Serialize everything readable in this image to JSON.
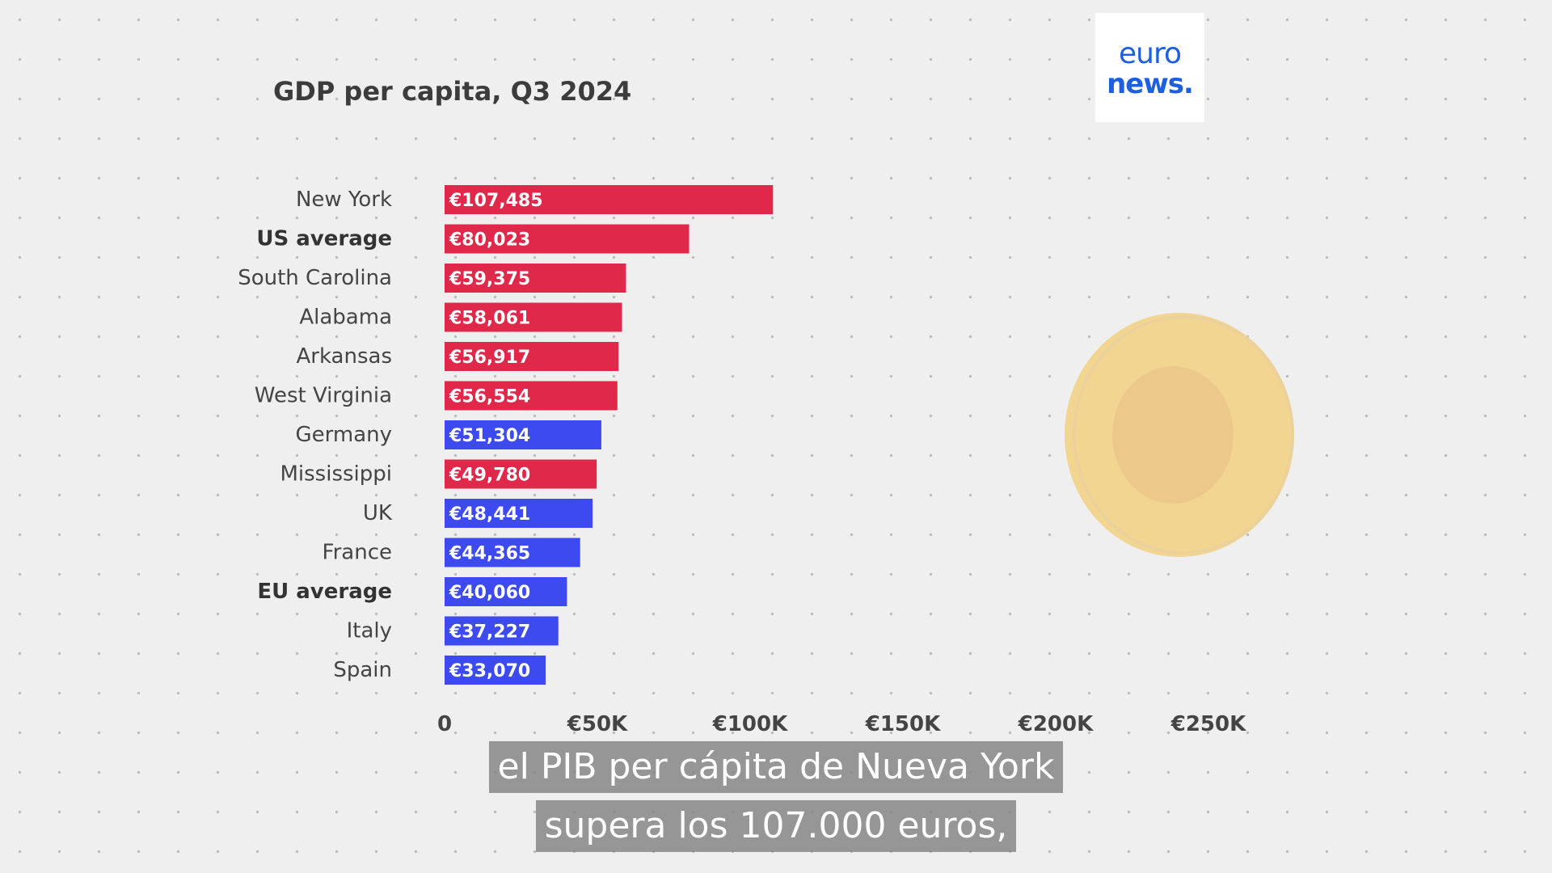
{
  "chart_data": {
    "type": "bar",
    "orientation": "horizontal",
    "title": "GDP per capita, Q3 2024",
    "categories": [
      "New York",
      "US average",
      "South Carolina",
      "Alabama",
      "Arkansas",
      "West Virginia",
      "Germany",
      "Mississippi",
      "UK",
      "France",
      "EU average",
      "Italy",
      "Spain"
    ],
    "values": [
      107485,
      80023,
      59375,
      58061,
      56917,
      56554,
      51304,
      49780,
      48441,
      44365,
      40060,
      37227,
      33070
    ],
    "value_labels": [
      "€107,485",
      "€80,023",
      "€59,375",
      "€58,061",
      "€56,917",
      "€56,554",
      "€51,304",
      "€49,780",
      "€48,441",
      "€44,365",
      "€40,060",
      "€37,227",
      "€33,070"
    ],
    "bold_categories": [
      "US average",
      "EU average"
    ],
    "bar_colors": [
      "#e0284a",
      "#e0284a",
      "#e0284a",
      "#e0284a",
      "#e0284a",
      "#e0284a",
      "#3d4af0",
      "#e0284a",
      "#3d4af0",
      "#3d4af0",
      "#3d4af0",
      "#3d4af0",
      "#3d4af0"
    ],
    "xlim": [
      0,
      250000
    ],
    "x_ticks": [
      0,
      50000,
      100000,
      150000,
      200000,
      250000
    ],
    "x_tick_labels": [
      "0",
      "€50K",
      "€100K",
      "€150K",
      "€200K",
      "€250K"
    ],
    "grid": false,
    "legend": "none"
  },
  "logo": {
    "line1": "euro",
    "line2": "news."
  },
  "subtitles": {
    "line1": "el PIB per cápita de Nueva York",
    "line2": "supera los 107.000 euros,"
  },
  "colors": {
    "us": "#e0284a",
    "europe": "#3d4af0",
    "coin": "#f1d591",
    "coin_inner": "#ecc98b"
  }
}
